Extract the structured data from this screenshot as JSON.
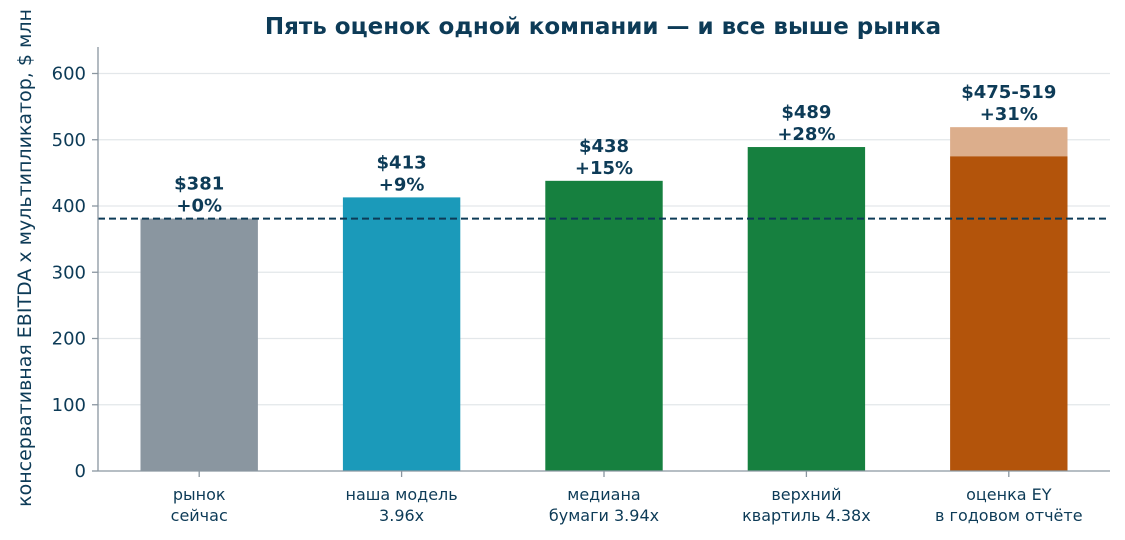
{
  "chart_data": {
    "type": "bar",
    "title": "Пять оценок одной компании — и все выше рынка",
    "ylabel": "консервативная EBITDA x мультипликатор, $ млн",
    "ylim": [
      0,
      640
    ],
    "yticks": [
      0,
      100,
      200,
      300,
      400,
      500,
      600
    ],
    "grid": true,
    "reference_line": 381,
    "categories": [
      [
        "рынок",
        "сейчас"
      ],
      [
        "наша модель",
        "3.96x"
      ],
      [
        "медиана",
        "бумаги 3.94x"
      ],
      [
        "верхний",
        "квартиль 4.38x"
      ],
      [
        "оценка EY",
        "в годовом отчёте"
      ]
    ],
    "values": [
      381,
      413,
      438,
      489,
      475
    ],
    "range_high": [
      null,
      null,
      null,
      null,
      519
    ],
    "colors": [
      "#8a96a0",
      "#1b9aba",
      "#16803f",
      "#16803f",
      "#b3540b"
    ],
    "range_color": "#dcae8c",
    "value_labels": [
      "$381",
      "$413",
      "$438",
      "$489",
      "$475-519"
    ],
    "pct_labels": [
      "+0%",
      "+9%",
      "+15%",
      "+28%",
      "+31%"
    ]
  }
}
